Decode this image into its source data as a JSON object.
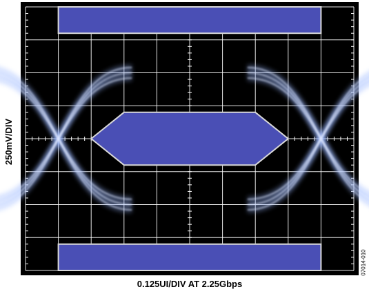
{
  "chart_data": {
    "type": "eye-diagram",
    "title": "",
    "xlabel": "0.125UI/DIV AT 2.25Gbps",
    "ylabel": "250mV/DIV",
    "figure_id": "07014-010",
    "x_divisions": 10,
    "y_divisions": 8,
    "x_unit": "UI",
    "x_per_div": 0.125,
    "y_unit": "mV",
    "y_per_div": 250,
    "x_range_ui": [
      -0.625,
      0.625
    ],
    "y_range_mv": [
      -1000,
      1000
    ],
    "grid": true,
    "eye_levels_mv": {
      "high": 500,
      "low": -500,
      "band_mv": 40
    },
    "crossing_points_ui": [
      -0.5,
      0.5
    ],
    "mask": {
      "top_region_mv": [
        800,
        1000
      ],
      "bottom_region_mv": [
        -1000,
        -800
      ],
      "regions_x_ui": [
        -0.5,
        0.5
      ],
      "center_hexagon": [
        [
          -0.375,
          0
        ],
        [
          -0.25,
          200
        ],
        [
          0.25,
          200
        ],
        [
          0.375,
          0
        ],
        [
          0.25,
          -200
        ],
        [
          -0.25,
          -200
        ]
      ]
    },
    "colors": {
      "background": "#000000",
      "grid": "#ffffff",
      "trace": "#9bb8ff",
      "mask_fill": "#4a4fb5",
      "mask_edge": "#d8d8d8"
    }
  }
}
